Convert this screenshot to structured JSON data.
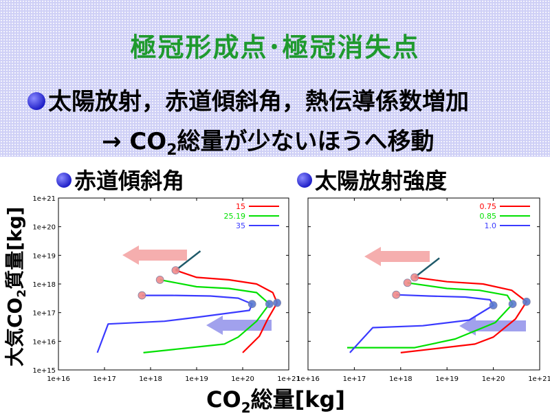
{
  "header": {
    "title": "極冠形成点･極冠消失点",
    "bullet_text": "太陽放射，赤道傾斜角，熱伝導係数増加",
    "arrow_line_prefix": "→ CO",
    "arrow_line_sub": "2",
    "arrow_line_suffix": "総量が少ないほうへ移動"
  },
  "panels": {
    "left_title": "赤道傾斜角",
    "right_title": "太陽放射強度"
  },
  "axes": {
    "ylabel_prefix": "大気CO",
    "ylabel_sub": "2",
    "ylabel_suffix": "質量[kg]",
    "xlabel_prefix": "CO",
    "xlabel_sub": "2",
    "xlabel_suffix": "総量[kg]"
  },
  "colors": {
    "title": "#1f9a2e",
    "series_red": "#ff0000",
    "series_green": "#00e000",
    "series_blue": "#3a3aff",
    "arrow_pink": "#f39a9a",
    "arrow_blue": "#8a8ae8"
  },
  "chart_data": [
    {
      "type": "line",
      "title": "赤道傾斜角",
      "x_scale": "log",
      "y_scale": "log",
      "xlim": [
        1e+16,
        1e+21
      ],
      "ylim": [
        1000000000000000.0,
        1e+21
      ],
      "x_ticks": [
        "1e+16",
        "1e+17",
        "1e+18",
        "1e+19",
        "1e+20",
        "1e+21"
      ],
      "y_ticks": [
        "1e+15",
        "1e+16",
        "1e+17",
        "1e+18",
        "1e+19",
        "1e+20",
        "1e+21"
      ],
      "legend_position": "top-right",
      "series": [
        {
          "name": "15",
          "color": "#ff0000",
          "points": [
            [
              3.5e+18,
              3e+18
            ],
            [
              1e+19,
              1.7e+18
            ],
            [
              5e+19,
              1.4e+18
            ],
            [
              2e+20,
              1e+18
            ],
            [
              4.5e+20,
              5e+17
            ],
            [
              5.6e+20,
              2.2e+17
            ],
            [
              3.5e+20,
              6e+16
            ],
            [
              2.3e+20,
              1.5e+16
            ],
            [
              1e+20,
              4000000000000000.0
            ]
          ]
        },
        {
          "name": "25.19",
          "color": "#00e000",
          "points": [
            [
              1.6e+18,
              1.4e+18
            ],
            [
              1e+19,
              8e+17
            ],
            [
              5e+19,
              7e+17
            ],
            [
              2e+20,
              5e+17
            ],
            [
              3.8e+20,
              2e+17
            ],
            [
              2e+20,
              5e+16
            ],
            [
              8e+19,
              1.4e+16
            ],
            [
              4e+19,
              8000000000000000.0
            ],
            [
              7e+17,
              4000000000000000.0
            ]
          ]
        },
        {
          "name": "35",
          "color": "#3a3aff",
          "points": [
            [
              6.5e+17,
              4e+17
            ],
            [
              3e+18,
              4e+17
            ],
            [
              2e+19,
              3.8e+17
            ],
            [
              8e+19,
              3.2e+17
            ],
            [
              1.6e+20,
              2e+17
            ],
            [
              1.4e+20,
              1.2e+17
            ],
            [
              1.1e+19,
              7e+16
            ],
            [
              2e+18,
              5e+16
            ],
            [
              1.2e+17,
              4e+16
            ],
            [
              7e+16,
              4000000000000000.0
            ]
          ]
        }
      ],
      "markers": [
        {
          "kind": "formation",
          "x": 3.5e+18,
          "y": 3e+18
        },
        {
          "kind": "formation",
          "x": 1.6e+18,
          "y": 1.4e+18
        },
        {
          "kind": "formation",
          "x": 6.5e+17,
          "y": 4e+17
        },
        {
          "kind": "disappearance",
          "x": 5.6e+20,
          "y": 2.2e+17
        },
        {
          "kind": "disappearance",
          "x": 3.8e+20,
          "y": 2e+17
        },
        {
          "kind": "disappearance",
          "x": 1.6e+20,
          "y": 2e+17
        }
      ]
    },
    {
      "type": "line",
      "title": "太陽放射強度",
      "x_scale": "log",
      "y_scale": "log",
      "xlim": [
        1e+16,
        1e+21
      ],
      "ylim": [
        1000000000000000.0,
        1e+21
      ],
      "x_ticks": [
        "1e+16",
        "1e+17",
        "1e+18",
        "1e+19",
        "1e+20",
        "1e+21"
      ],
      "legend_position": "top-right",
      "series": [
        {
          "name": "0.75",
          "color": "#ff0000",
          "points": [
            [
              2e+18,
              1.7e+18
            ],
            [
              1e+19,
              1.2e+18
            ],
            [
              6e+19,
              1e+18
            ],
            [
              2.5e+20,
              6e+17
            ],
            [
              5.2e+20,
              2.4e+17
            ],
            [
              3e+20,
              6e+16
            ],
            [
              1e+20,
              1.4e+16
            ],
            [
              4e+19,
              8000000000000000.0
            ],
            [
              1e+18,
              4000000000000000.0
            ]
          ]
        },
        {
          "name": "0.85",
          "color": "#00e000",
          "points": [
            [
              1.4e+18,
              1.1e+18
            ],
            [
              1e+19,
              7e+17
            ],
            [
              5e+19,
              6e+17
            ],
            [
              2e+20,
              4e+17
            ],
            [
              2.6e+20,
              2e+17
            ],
            [
              1.1e+20,
              4.5e+16
            ],
            [
              1.5e+19,
              1.2e+16
            ],
            [
              2e+18,
              6000000000000000.0
            ],
            [
              7e+16,
              6000000000000000.0
            ]
          ]
        },
        {
          "name": "1.0",
          "color": "#3a3aff",
          "points": [
            [
              8e+17,
              4.2e+17
            ],
            [
              4e+18,
              3.8e+17
            ],
            [
              2.5e+19,
              3.5e+17
            ],
            [
              8.5e+19,
              2.8e+17
            ],
            [
              1e+20,
              1.8e+17
            ],
            [
              3e+19,
              5.5e+16
            ],
            [
              3e+18,
              3.5e+16
            ],
            [
              2.5e+17,
              3e+16
            ],
            [
              8e+16,
              4000000000000000.0
            ]
          ]
        }
      ],
      "markers": [
        {
          "kind": "formation",
          "x": 2e+18,
          "y": 1.7e+18
        },
        {
          "kind": "formation",
          "x": 1.4e+18,
          "y": 1.1e+18
        },
        {
          "kind": "formation",
          "x": 8e+17,
          "y": 4.2e+17
        },
        {
          "kind": "disappearance",
          "x": 5.2e+20,
          "y": 2.4e+17
        },
        {
          "kind": "disappearance",
          "x": 2.6e+20,
          "y": 2e+17
        },
        {
          "kind": "disappearance",
          "x": 1e+20,
          "y": 1.8e+17
        }
      ]
    }
  ]
}
